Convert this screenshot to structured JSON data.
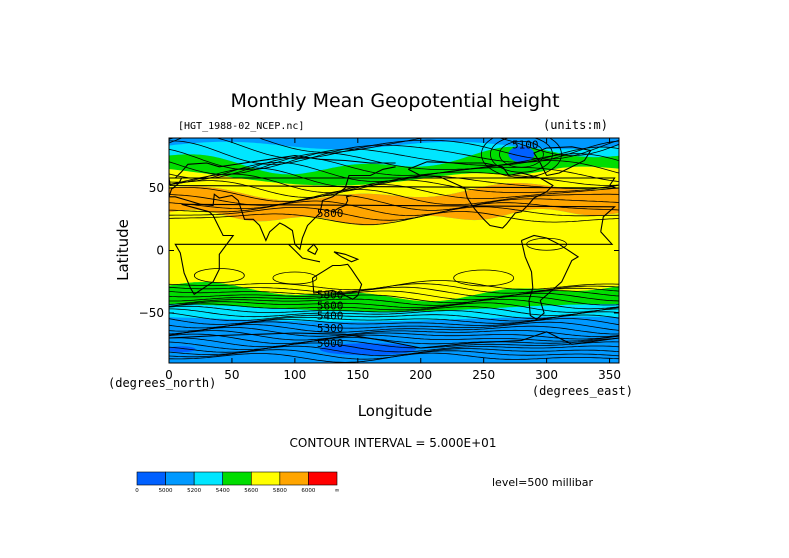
{
  "chart_data": {
    "type": "heatmap",
    "title": "Monthly Mean Geopotential height",
    "file_label": "[HGT_1988-02_NCEP.nc]",
    "units_label": "(units:m)",
    "xlabel": "Longitude",
    "xunits": "(degrees_east)",
    "ylabel": "Latitude",
    "yunits": "(degrees_north)",
    "xlim": [
      0,
      357.5
    ],
    "ylim": [
      -90,
      90
    ],
    "x_ticks": [
      {
        "value": 0,
        "label": "0"
      },
      {
        "value": 50,
        "label": "50"
      },
      {
        "value": 100,
        "label": "100"
      },
      {
        "value": 150,
        "label": "150"
      },
      {
        "value": 200,
        "label": "200"
      },
      {
        "value": 250,
        "label": "250"
      },
      {
        "value": 300,
        "label": "300"
      },
      {
        "value": 350,
        "label": "350"
      }
    ],
    "y_ticks": [
      {
        "value": 50,
        "label": "50"
      },
      {
        "value": 0,
        "label": "0"
      },
      {
        "value": -50,
        "label": "−50"
      }
    ],
    "contour_interval": "CONTOUR INTERVAL = 5.000E+01",
    "level": "level=500 millibar",
    "contour_labels": [
      {
        "text": "5100",
        "lon": 283,
        "lat": 85
      },
      {
        "text": "5800",
        "lon": 128,
        "lat": 30
      },
      {
        "text": "5800",
        "lon": 128,
        "lat": -35
      },
      {
        "text": "5600",
        "lon": 128,
        "lat": -44
      },
      {
        "text": "5400",
        "lon": 128,
        "lat": -52
      },
      {
        "text": "5300",
        "lon": 128,
        "lat": -62
      },
      {
        "text": "5000",
        "lon": 128,
        "lat": -74
      }
    ],
    "colorbar": {
      "bins": [
        {
          "color": "#0060ff",
          "label": "0"
        },
        {
          "color": "#0099ff",
          "label": "5000"
        },
        {
          "color": "#00e6ff",
          "label": "5200"
        },
        {
          "color": "#00dd00",
          "label": "5400"
        },
        {
          "color": "#ffff00",
          "label": "5600"
        },
        {
          "color": "#ffa500",
          "label": "5800"
        },
        {
          "color": "#ff0000",
          "label": "6000"
        }
      ],
      "end_label": "∞"
    }
  }
}
